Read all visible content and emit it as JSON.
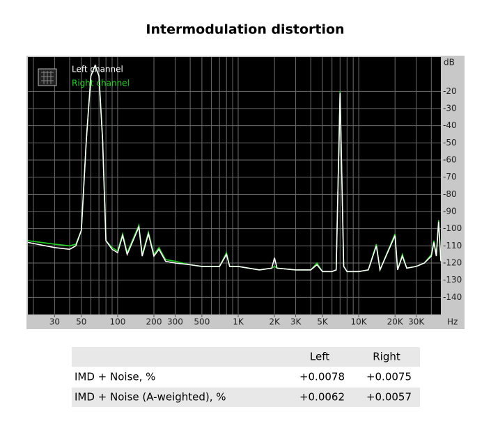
{
  "chart_data": {
    "type": "line",
    "title": "Intermodulation distortion",
    "xlabel": "Hz",
    "ylabel": "dB",
    "xscale": "log",
    "xlim": [
      18,
      48000
    ],
    "ylim": [
      -150,
      0
    ],
    "grid": true,
    "legend": "upper left",
    "xticks": [
      30,
      50,
      100,
      200,
      300,
      500,
      {
        "value": 1000,
        "label": "1K"
      },
      {
        "value": 2000,
        "label": "2K"
      },
      {
        "value": 3000,
        "label": "3K"
      },
      {
        "value": 5000,
        "label": "5K"
      },
      {
        "value": 10000,
        "label": "10K"
      },
      {
        "value": 20000,
        "label": "20K"
      },
      {
        "value": 30000,
        "label": "30K"
      }
    ],
    "xgrid": [
      20,
      30,
      40,
      50,
      60,
      70,
      80,
      90,
      100,
      200,
      300,
      400,
      500,
      600,
      700,
      800,
      900,
      1000,
      2000,
      3000,
      4000,
      5000,
      6000,
      7000,
      8000,
      9000,
      10000,
      20000,
      30000,
      40000
    ],
    "yticks": [
      -20,
      -30,
      -40,
      -50,
      -60,
      -70,
      -80,
      -90,
      -100,
      -110,
      -120,
      -130,
      -140
    ],
    "x": [
      18,
      30,
      40,
      45,
      50,
      55,
      60,
      65,
      70,
      75,
      80,
      90,
      100,
      110,
      120,
      150,
      160,
      180,
      200,
      220,
      250,
      300,
      400,
      500,
      700,
      800,
      850,
      1000,
      1500,
      1900,
      2000,
      2100,
      3000,
      4000,
      4500,
      5000,
      6000,
      6500,
      7000,
      7500,
      8000,
      10000,
      12000,
      14000,
      15000,
      20000,
      21000,
      23000,
      25000,
      30000,
      35000,
      40000,
      42000,
      44000,
      46000,
      48000
    ],
    "series": [
      {
        "name": "Left channel",
        "color": "#ffffff",
        "values": [
          -108,
          -111,
          -112,
          -110,
          -101,
          -48,
          -11,
          -5,
          -11,
          -48,
          -107,
          -112,
          -114,
          -104,
          -115,
          -99,
          -116,
          -103,
          -116,
          -112,
          -119,
          -120,
          -121,
          -122,
          -122,
          -115,
          -122,
          -122,
          -124,
          -123,
          -117,
          -123,
          -124,
          -124,
          -121,
          -125,
          -125,
          -124,
          -21,
          -122,
          -125,
          -125,
          -124,
          -110,
          -124,
          -104,
          -124,
          -116,
          -123,
          -122,
          -120,
          -116,
          -108,
          -116,
          -96,
          -119
        ]
      },
      {
        "name": "Right channel",
        "color": "#22d422",
        "values": [
          -107,
          -109,
          -110,
          -109,
          -101,
          -48,
          -11,
          -5,
          -11,
          -48,
          -107,
          -111,
          -113,
          -103,
          -114,
          -98,
          -115,
          -102,
          -115,
          -111,
          -118,
          -119,
          -121,
          -122,
          -122,
          -114,
          -122,
          -122,
          -124,
          -123,
          -122,
          -123,
          -124,
          -124,
          -120,
          -125,
          -125,
          -124,
          -20,
          -122,
          -125,
          -125,
          -124,
          -109,
          -124,
          -103,
          -124,
          -115,
          -123,
          -122,
          -120,
          -115,
          -107,
          -115,
          -95,
          -118
        ]
      }
    ]
  },
  "table": {
    "header": [
      "Left",
      "Right"
    ],
    "rows": [
      [
        "IMD + Noise, %",
        "+0.0078",
        "+0.0075"
      ],
      [
        "IMD + Noise (A-weighted), %",
        "+0.0062",
        "+0.0057"
      ]
    ]
  }
}
